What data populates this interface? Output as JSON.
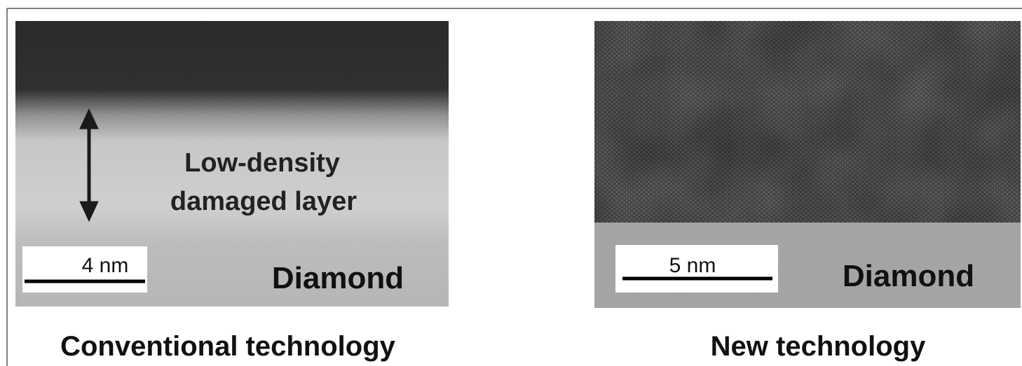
{
  "panels": [
    {
      "annotation": [
        "Low-density",
        "damaged layer"
      ],
      "scale_bar": "4 nm",
      "material": "Diamond",
      "caption": "Conventional technology"
    },
    {
      "scale_bar": "5 nm",
      "material": "Diamond",
      "caption": "New technology"
    }
  ]
}
